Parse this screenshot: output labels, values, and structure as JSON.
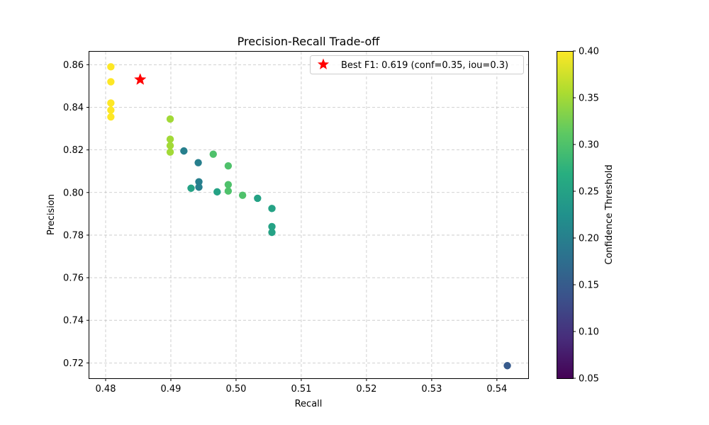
{
  "chart_data": {
    "type": "scatter",
    "title": "Precision-Recall Trade-off",
    "xlabel": "Recall",
    "ylabel": "Precision",
    "xlim": [
      0.4775,
      0.5448
    ],
    "ylim": [
      0.7128,
      0.8661
    ],
    "xticks": [
      0.48,
      0.49,
      0.5,
      0.51,
      0.52,
      0.53,
      0.54
    ],
    "yticks": [
      0.72,
      0.74,
      0.76,
      0.78,
      0.8,
      0.82,
      0.84,
      0.86
    ],
    "xtick_labels": [
      "0.48",
      "0.49",
      "0.50",
      "0.51",
      "0.52",
      "0.53",
      "0.54"
    ],
    "ytick_labels": [
      "0.72",
      "0.74",
      "0.76",
      "0.78",
      "0.80",
      "0.82",
      "0.84",
      "0.86"
    ],
    "grid": true,
    "grid_style": "dashed",
    "points": [
      {
        "x": 0.4808,
        "y": 0.859,
        "conf": 0.4
      },
      {
        "x": 0.4808,
        "y": 0.852,
        "conf": 0.4
      },
      {
        "x": 0.4808,
        "y": 0.842,
        "conf": 0.4
      },
      {
        "x": 0.4808,
        "y": 0.8387,
        "conf": 0.4
      },
      {
        "x": 0.4808,
        "y": 0.8355,
        "conf": 0.4
      },
      {
        "x": 0.4899,
        "y": 0.8345,
        "conf": 0.35
      },
      {
        "x": 0.4899,
        "y": 0.825,
        "conf": 0.35
      },
      {
        "x": 0.4899,
        "y": 0.822,
        "conf": 0.35
      },
      {
        "x": 0.4899,
        "y": 0.819,
        "conf": 0.35
      },
      {
        "x": 0.492,
        "y": 0.8195,
        "conf": 0.2
      },
      {
        "x": 0.4942,
        "y": 0.814,
        "conf": 0.2
      },
      {
        "x": 0.4943,
        "y": 0.805,
        "conf": 0.2
      },
      {
        "x": 0.4943,
        "y": 0.8025,
        "conf": 0.2
      },
      {
        "x": 0.4931,
        "y": 0.802,
        "conf": 0.25
      },
      {
        "x": 0.4965,
        "y": 0.818,
        "conf": 0.3
      },
      {
        "x": 0.4988,
        "y": 0.8125,
        "conf": 0.3
      },
      {
        "x": 0.4988,
        "y": 0.8037,
        "conf": 0.3
      },
      {
        "x": 0.4988,
        "y": 0.8007,
        "conf": 0.3
      },
      {
        "x": 0.4971,
        "y": 0.8003,
        "conf": 0.25
      },
      {
        "x": 0.501,
        "y": 0.7987,
        "conf": 0.3
      },
      {
        "x": 0.5033,
        "y": 0.7973,
        "conf": 0.25
      },
      {
        "x": 0.5055,
        "y": 0.7925,
        "conf": 0.25
      },
      {
        "x": 0.5055,
        "y": 0.784,
        "conf": 0.25
      },
      {
        "x": 0.5055,
        "y": 0.7813,
        "conf": 0.25
      },
      {
        "x": 0.5416,
        "y": 0.7187,
        "conf": 0.15
      }
    ],
    "best_point": {
      "x": 0.4853,
      "y": 0.853,
      "color": "#ff0000"
    },
    "legend": {
      "label": "Best F1: 0.619 (conf=0.35, iou=0.3)",
      "placement": "top-right"
    },
    "colorbar": {
      "label": "Confidence Threshold",
      "colormap": "viridis",
      "min": 0.05,
      "max": 0.4,
      "ticks": [
        0.05,
        0.1,
        0.15,
        0.2,
        0.25,
        0.3,
        0.35,
        0.4
      ],
      "tick_labels": [
        "0.05",
        "0.10",
        "0.15",
        "0.20",
        "0.25",
        "0.30",
        "0.35",
        "0.40"
      ]
    }
  }
}
